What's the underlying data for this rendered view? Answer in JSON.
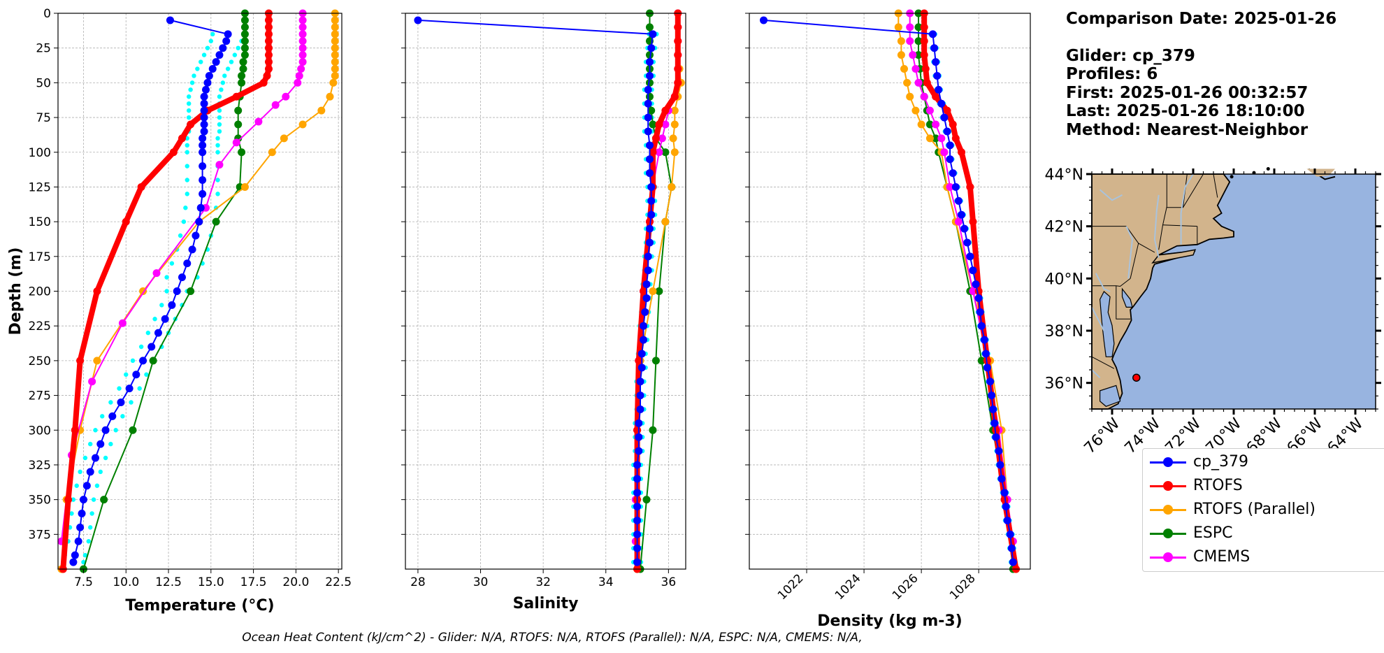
{
  "info": {
    "date_line": "Comparison Date: 2025-01-26",
    "glider_line": "Glider: cp_379",
    "profiles_line": "Profiles: 6",
    "first_line": "First: 2025-01-26 00:32:57",
    "last_line": "Last: 2025-01-26 18:10:00",
    "method_line": "Method: Nearest-Neighbor"
  },
  "footer": "Ocean Heat Content (kJ/cm^2) - Glider: N/A,  RTOFS: N/A,  RTOFS (Parallel): N/A,  ESPC: N/A,  CMEMS: N/A,",
  "legend": [
    {
      "label": "cp_379",
      "color": "#0000ff"
    },
    {
      "label": "RTOFS",
      "color": "#ff0000"
    },
    {
      "label": "RTOFS (Parallel)",
      "color": "#ffa500"
    },
    {
      "label": "ESPC",
      "color": "#008000"
    },
    {
      "label": "CMEMS",
      "color": "#ff00ff"
    }
  ],
  "colors": {
    "glider": "#0000ff",
    "glider_profiles": "#00ffff",
    "rtofs": "#ff0000",
    "rtofs_parallel": "#ffa500",
    "espc": "#008000",
    "cmems": "#ff00ff",
    "land": "#d2b48c",
    "ocean": "#98b4e0",
    "rivers": "#a9c3dd"
  },
  "chart_data": [
    {
      "type": "line",
      "xlabel": "Temperature (°C)",
      "ylabel": "Depth (m)",
      "xlim": [
        6,
        22.7
      ],
      "ylim": [
        400,
        0
      ],
      "xticks": [
        "7.5",
        "10.0",
        "12.5",
        "15.0",
        "17.5",
        "20.0",
        "22.5"
      ],
      "yticks": [
        "0",
        "25",
        "50",
        "75",
        "100",
        "125",
        "150",
        "175",
        "200",
        "225",
        "250",
        "275",
        "300",
        "325",
        "350",
        "375"
      ],
      "grid": true,
      "series": [
        {
          "name": "RTOFS",
          "depth": [
            0,
            5,
            10,
            15,
            20,
            25,
            30,
            35,
            40,
            45,
            50,
            60,
            70,
            80,
            90,
            100,
            125,
            150,
            200,
            250,
            300,
            350,
            400
          ],
          "values": [
            18.4,
            18.4,
            18.4,
            18.4,
            18.4,
            18.4,
            18.4,
            18.4,
            18.4,
            18.3,
            18.1,
            16.5,
            14.8,
            13.8,
            13.3,
            12.8,
            10.9,
            10.0,
            8.3,
            7.3,
            7.0,
            6.6,
            6.3
          ]
        },
        {
          "name": "RTOFS (Parallel)",
          "depth": [
            0,
            5,
            10,
            15,
            20,
            25,
            30,
            35,
            40,
            45,
            50,
            60,
            70,
            80,
            90,
            100,
            125,
            150,
            200,
            250,
            300,
            350,
            400
          ],
          "values": [
            22.3,
            22.3,
            22.3,
            22.3,
            22.3,
            22.3,
            22.3,
            22.3,
            22.3,
            22.3,
            22.2,
            22.0,
            21.5,
            20.4,
            19.3,
            18.6,
            17.0,
            14.3,
            11.0,
            8.3,
            7.3,
            6.5,
            6.2
          ]
        },
        {
          "name": "ESPC",
          "depth": [
            0,
            5,
            10,
            15,
            20,
            25,
            30,
            35,
            40,
            45,
            50,
            60,
            70,
            80,
            90,
            100,
            125,
            150,
            200,
            250,
            300,
            350,
            400
          ],
          "values": [
            17.0,
            17.0,
            17.0,
            17.0,
            17.0,
            17.0,
            17.0,
            16.9,
            16.9,
            16.8,
            16.8,
            16.7,
            16.6,
            16.6,
            16.6,
            16.8,
            16.7,
            15.3,
            13.8,
            11.6,
            10.4,
            8.7,
            7.5
          ]
        },
        {
          "name": "CMEMS",
          "depth": [
            0,
            5,
            10,
            15,
            20,
            25,
            30,
            35,
            40,
            45,
            50,
            60,
            66,
            78,
            93,
            109,
            140,
            187,
            223,
            265,
            318,
            380
          ],
          "values": [
            20.4,
            20.4,
            20.4,
            20.4,
            20.4,
            20.4,
            20.4,
            20.4,
            20.3,
            20.2,
            20.1,
            19.4,
            18.8,
            17.8,
            16.5,
            15.5,
            14.7,
            11.8,
            9.8,
            8.0,
            6.8,
            6.2
          ]
        },
        {
          "name": "cp_379",
          "depth": [
            5,
            15,
            20,
            25,
            30,
            35,
            40,
            45,
            50,
            55,
            60,
            65,
            70,
            75,
            80,
            85,
            90,
            95,
            100,
            110,
            120,
            130,
            140,
            150,
            160,
            170,
            180,
            190,
            200,
            210,
            220,
            230,
            240,
            250,
            260,
            270,
            280,
            290,
            300,
            310,
            320,
            330,
            340,
            350,
            360,
            370,
            380,
            390,
            395
          ],
          "values": [
            12.6,
            16.0,
            15.9,
            15.7,
            15.5,
            15.3,
            15.1,
            14.9,
            14.8,
            14.7,
            14.6,
            14.6,
            14.6,
            14.6,
            14.6,
            14.6,
            14.5,
            14.5,
            14.5,
            14.5,
            14.5,
            14.5,
            14.4,
            14.3,
            14.1,
            13.9,
            13.6,
            13.3,
            13.0,
            12.7,
            12.3,
            11.9,
            11.5,
            11.0,
            10.6,
            10.2,
            9.7,
            9.2,
            8.8,
            8.5,
            8.2,
            7.9,
            7.7,
            7.5,
            7.4,
            7.3,
            7.2,
            7.0,
            6.9
          ]
        }
      ]
    },
    {
      "type": "line",
      "xlabel": "Salinity",
      "ylabel": "",
      "xlim": [
        27.6,
        36.55
      ],
      "ylim": [
        400,
        0
      ],
      "xticks": [
        "28",
        "30",
        "32",
        "34",
        "36"
      ],
      "grid": true,
      "series": [
        {
          "name": "RTOFS",
          "depth": [
            0,
            10,
            20,
            30,
            40,
            50,
            60,
            70,
            80,
            90,
            100,
            125,
            150,
            200,
            250,
            300,
            350,
            400
          ],
          "values": [
            36.3,
            36.3,
            36.3,
            36.3,
            36.3,
            36.3,
            36.2,
            35.9,
            35.7,
            35.6,
            35.5,
            35.5,
            35.4,
            35.2,
            35.05,
            35.0,
            35.0,
            35.0
          ]
        },
        {
          "name": "RTOFS (Parallel)",
          "depth": [
            0,
            10,
            20,
            30,
            40,
            50,
            60,
            70,
            80,
            90,
            100,
            125,
            150,
            200,
            250,
            300,
            350,
            400
          ],
          "values": [
            36.3,
            36.3,
            36.3,
            36.3,
            36.35,
            36.4,
            36.3,
            36.2,
            36.2,
            36.15,
            36.2,
            36.1,
            35.9,
            35.5,
            35.1,
            35.0,
            35.0,
            35.0
          ]
        },
        {
          "name": "ESPC",
          "depth": [
            0,
            10,
            20,
            30,
            40,
            50,
            60,
            70,
            80,
            90,
            100,
            125,
            150,
            200,
            250,
            300,
            350,
            400
          ],
          "values": [
            35.4,
            35.4,
            35.4,
            35.4,
            35.4,
            35.4,
            35.4,
            35.45,
            35.5,
            35.6,
            35.9,
            36.1,
            35.9,
            35.7,
            35.6,
            35.5,
            35.3,
            35.1
          ]
        },
        {
          "name": "CMEMS",
          "depth": [
            0,
            10,
            20,
            30,
            40,
            50,
            60,
            70,
            80,
            90,
            100,
            125,
            150,
            200,
            250,
            300,
            350,
            380
          ],
          "values": [
            36.3,
            36.3,
            36.3,
            36.3,
            36.3,
            36.3,
            36.2,
            36.0,
            35.9,
            35.8,
            35.7,
            35.5,
            35.4,
            35.2,
            35.05,
            35.0,
            34.95,
            34.95
          ]
        },
        {
          "name": "cp_379",
          "depth": [
            5,
            15,
            25,
            35,
            45,
            55,
            65,
            75,
            85,
            95,
            105,
            115,
            125,
            135,
            145,
            155,
            165,
            175,
            185,
            195,
            205,
            215,
            225,
            235,
            245,
            255,
            265,
            275,
            285,
            295,
            305,
            315,
            325,
            335,
            345,
            355,
            365,
            375,
            385,
            395
          ],
          "values": [
            28.0,
            35.5,
            35.45,
            35.4,
            35.4,
            35.35,
            35.35,
            35.35,
            35.35,
            35.4,
            35.4,
            35.4,
            35.45,
            35.45,
            35.45,
            35.4,
            35.4,
            35.35,
            35.35,
            35.3,
            35.3,
            35.25,
            35.2,
            35.2,
            35.15,
            35.15,
            35.1,
            35.1,
            35.1,
            35.05,
            35.05,
            35.05,
            35.0,
            35.0,
            35.0,
            35.0,
            35.0,
            35.0,
            35.0,
            35.0
          ]
        }
      ]
    },
    {
      "type": "line",
      "xlabel": "Density (kg m-3)",
      "ylabel": "",
      "xlim": [
        1020.0,
        1029.8
      ],
      "ylim": [
        400,
        0
      ],
      "xticks": [
        "1022",
        "1024",
        "1026",
        "1028"
      ],
      "grid": true,
      "series": [
        {
          "name": "RTOFS",
          "depth": [
            0,
            10,
            20,
            30,
            40,
            50,
            60,
            70,
            80,
            90,
            100,
            125,
            150,
            200,
            250,
            300,
            350,
            400
          ],
          "values": [
            1026.1,
            1026.1,
            1026.1,
            1026.1,
            1026.15,
            1026.2,
            1026.5,
            1026.9,
            1027.1,
            1027.2,
            1027.4,
            1027.7,
            1027.8,
            1028.0,
            1028.3,
            1028.6,
            1028.9,
            1029.3
          ]
        },
        {
          "name": "RTOFS (Parallel)",
          "depth": [
            0,
            10,
            20,
            30,
            40,
            50,
            60,
            70,
            80,
            90,
            100,
            125,
            150,
            200,
            250,
            300,
            350,
            400
          ],
          "values": [
            1025.2,
            1025.2,
            1025.3,
            1025.3,
            1025.4,
            1025.5,
            1025.6,
            1025.8,
            1026.0,
            1026.3,
            1026.7,
            1026.9,
            1027.2,
            1027.8,
            1028.4,
            1028.8,
            1029.0,
            1029.3
          ]
        },
        {
          "name": "ESPC",
          "depth": [
            0,
            10,
            20,
            30,
            40,
            50,
            60,
            70,
            80,
            90,
            100,
            125,
            150,
            200,
            250,
            300,
            350,
            400
          ],
          "values": [
            1025.9,
            1025.9,
            1025.9,
            1025.9,
            1025.95,
            1026.0,
            1026.1,
            1026.2,
            1026.3,
            1026.5,
            1026.6,
            1026.9,
            1027.2,
            1027.7,
            1028.1,
            1028.5,
            1028.9,
            1029.2
          ]
        },
        {
          "name": "CMEMS",
          "depth": [
            0,
            10,
            20,
            30,
            40,
            50,
            60,
            70,
            80,
            90,
            100,
            125,
            150,
            200,
            250,
            300,
            350,
            380
          ],
          "values": [
            1025.6,
            1025.6,
            1025.6,
            1025.7,
            1025.8,
            1025.9,
            1026.1,
            1026.3,
            1026.5,
            1026.7,
            1026.8,
            1027.0,
            1027.3,
            1027.8,
            1028.3,
            1028.7,
            1029.0,
            1029.2
          ]
        },
        {
          "name": "cp_379",
          "depth": [
            5,
            15,
            25,
            35,
            45,
            55,
            65,
            75,
            85,
            95,
            105,
            115,
            125,
            135,
            145,
            155,
            165,
            175,
            185,
            195,
            205,
            215,
            225,
            235,
            245,
            255,
            265,
            275,
            285,
            295,
            305,
            315,
            325,
            335,
            345,
            355,
            365,
            375,
            385,
            395
          ],
          "values": [
            1020.5,
            1026.4,
            1026.45,
            1026.5,
            1026.55,
            1026.6,
            1026.7,
            1026.8,
            1026.9,
            1027.0,
            1027.0,
            1027.1,
            1027.2,
            1027.3,
            1027.4,
            1027.5,
            1027.6,
            1027.7,
            1027.8,
            1027.9,
            1028.0,
            1028.05,
            1028.1,
            1028.2,
            1028.25,
            1028.3,
            1028.4,
            1028.45,
            1028.5,
            1028.55,
            1028.6,
            1028.7,
            1028.75,
            1028.8,
            1028.9,
            1028.95,
            1029.0,
            1029.1,
            1029.15,
            1029.2
          ]
        }
      ]
    }
  ],
  "map": {
    "lat_labels": [
      "44°N",
      "42°N",
      "40°N",
      "38°N",
      "36°N"
    ],
    "lon_labels": [
      "76°W",
      "74°W",
      "72°W",
      "70°W",
      "68°W",
      "66°W",
      "64°W"
    ],
    "glider_position": {
      "lat": 36.2,
      "lon": -74.8
    }
  }
}
